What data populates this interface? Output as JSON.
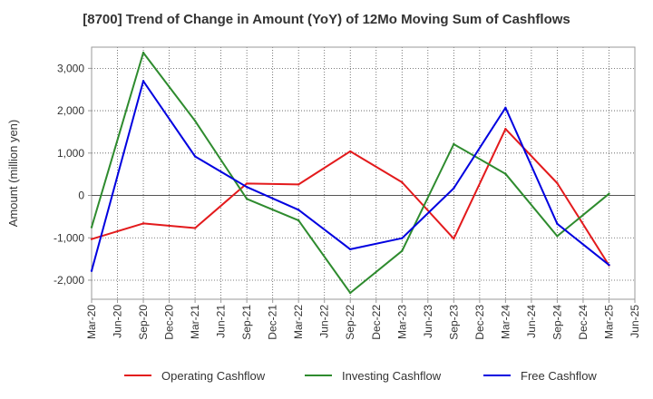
{
  "chart_data": {
    "type": "line",
    "title": "[8700]  Trend of Change in Amount (YoY) of 12Mo Moving Sum of Cashflows",
    "xlabel": "",
    "ylabel": "Amount (million yen)",
    "ylim": [
      -2450,
      3500
    ],
    "yticks": [
      -2000,
      -1000,
      0,
      1000,
      2000,
      3000
    ],
    "ytick_labels": [
      "-2,000",
      "-1,000",
      "0",
      "1,000",
      "2,000",
      "3,000"
    ],
    "grid": true,
    "legend_position": "bottom",
    "categories": [
      "Mar-20",
      "Jun-20",
      "Sep-20",
      "Dec-20",
      "Mar-21",
      "Jun-21",
      "Sep-21",
      "Dec-21",
      "Mar-22",
      "Jun-22",
      "Sep-22",
      "Dec-22",
      "Mar-23",
      "Jun-23",
      "Sep-23",
      "Dec-23",
      "Mar-24",
      "Jun-24",
      "Sep-24",
      "Dec-24",
      "Mar-25",
      "Jun-25"
    ],
    "series": [
      {
        "name": "Operating Cashflow",
        "color": "#e31a1c",
        "x": [
          "Mar-20",
          "Sep-20",
          "Mar-21",
          "Sep-21",
          "Mar-22",
          "Sep-22",
          "Mar-23",
          "Sep-23",
          "Mar-24",
          "Sep-24",
          "Mar-25"
        ],
        "values": [
          -1030,
          -660,
          -770,
          280,
          260,
          1040,
          310,
          -1020,
          1570,
          290,
          -1650
        ]
      },
      {
        "name": "Investing Cashflow",
        "color": "#2e8b2e",
        "x": [
          "Mar-20",
          "Sep-20",
          "Mar-21",
          "Sep-21",
          "Mar-22",
          "Sep-22",
          "Mar-23",
          "Sep-23",
          "Mar-24",
          "Sep-24",
          "Mar-25"
        ],
        "values": [
          -750,
          3370,
          1760,
          -80,
          -590,
          -2300,
          -1310,
          1210,
          510,
          -960,
          40
        ]
      },
      {
        "name": "Free Cashflow",
        "color": "#0000e0",
        "x": [
          "Mar-20",
          "Sep-20",
          "Mar-21",
          "Sep-21",
          "Mar-22",
          "Sep-22",
          "Mar-23",
          "Sep-23",
          "Mar-24",
          "Sep-24",
          "Mar-25"
        ],
        "values": [
          -1780,
          2700,
          920,
          200,
          -340,
          -1270,
          -1010,
          170,
          2070,
          -670,
          -1640
        ]
      }
    ]
  }
}
